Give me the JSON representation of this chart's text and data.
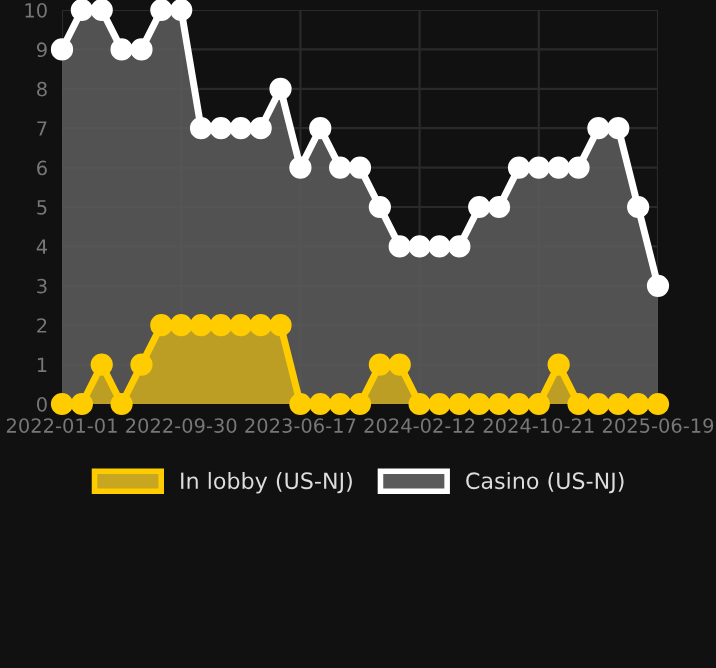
{
  "chart_data": {
    "type": "area",
    "categories": [
      "2022-01-01",
      null,
      null,
      null,
      null,
      null,
      "2022-09-30",
      null,
      null,
      null,
      null,
      null,
      "2023-06-17",
      null,
      null,
      null,
      null,
      null,
      "2024-02-12",
      null,
      null,
      null,
      null,
      null,
      "2024-10-21",
      null,
      null,
      null,
      null,
      null,
      "2025-06-19"
    ],
    "series": [
      {
        "name": "In lobby (US-NJ)",
        "color": "#ffcc00",
        "values": [
          0,
          0,
          1,
          0,
          1,
          2,
          2,
          2,
          2,
          2,
          2,
          2,
          0,
          0,
          0,
          0,
          1,
          1,
          0,
          0,
          0,
          0,
          0,
          0,
          0,
          1,
          0,
          0,
          0,
          0,
          0
        ]
      },
      {
        "name": "Casino (US-NJ)",
        "color": "#ffffff",
        "values": [
          9,
          10,
          10,
          9,
          9,
          10,
          10,
          7,
          7,
          7,
          7,
          8,
          6,
          7,
          6,
          6,
          5,
          4,
          4,
          4,
          4,
          5,
          5,
          6,
          6,
          6,
          6,
          7,
          7,
          5,
          3
        ]
      }
    ],
    "ylim": [
      0,
      10
    ],
    "yticks": [
      0,
      1,
      2,
      3,
      4,
      5,
      6,
      7,
      8,
      9,
      10
    ],
    "grid": true,
    "legend": "bottom",
    "marker": "circle",
    "line_style": "solid"
  }
}
